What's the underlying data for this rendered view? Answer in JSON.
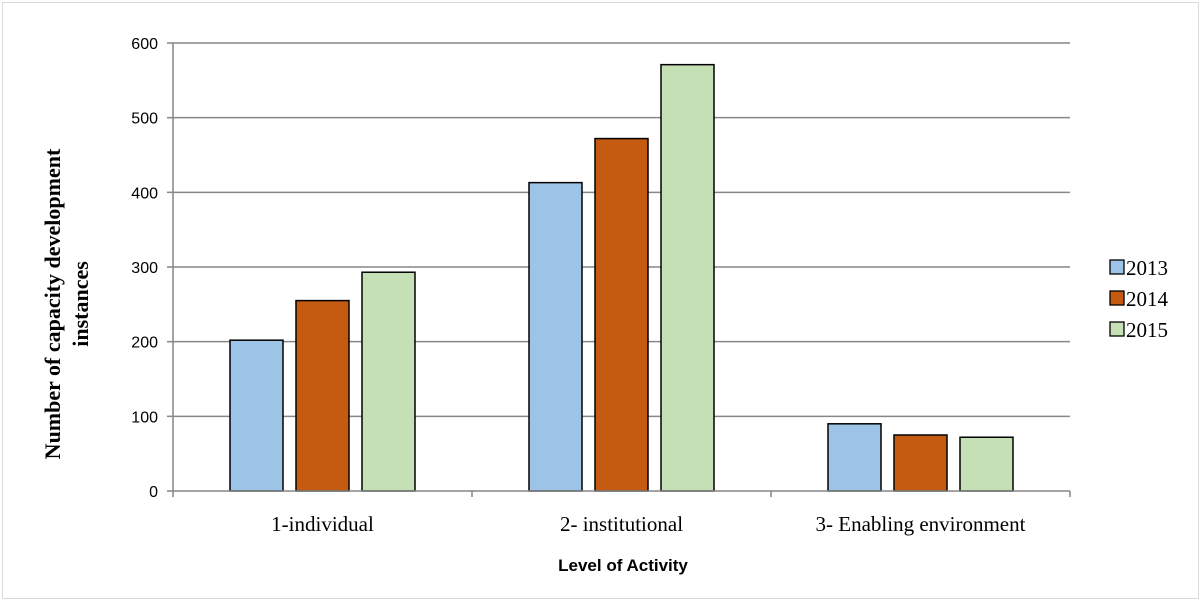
{
  "chart_data": {
    "type": "bar",
    "categories": [
      "1-individual",
      "2- institutional",
      "3- Enabling environment"
    ],
    "series": [
      {
        "name": "2013",
        "values": [
          202,
          413,
          90
        ],
        "color": "#9dc3e6"
      },
      {
        "name": "2014",
        "values": [
          255,
          472,
          75
        ],
        "color": "#c55a11"
      },
      {
        "name": "2015",
        "values": [
          293,
          571,
          72
        ],
        "color": "#c5e0b4"
      }
    ],
    "xlabel": "Level of Activity",
    "ylabel_lines": [
      "Number of capacity development",
      "instances"
    ],
    "ylim": [
      0,
      600
    ],
    "yticks": [
      0,
      100,
      200,
      300,
      400,
      500,
      600
    ],
    "grid": true,
    "legend_position": "right"
  }
}
